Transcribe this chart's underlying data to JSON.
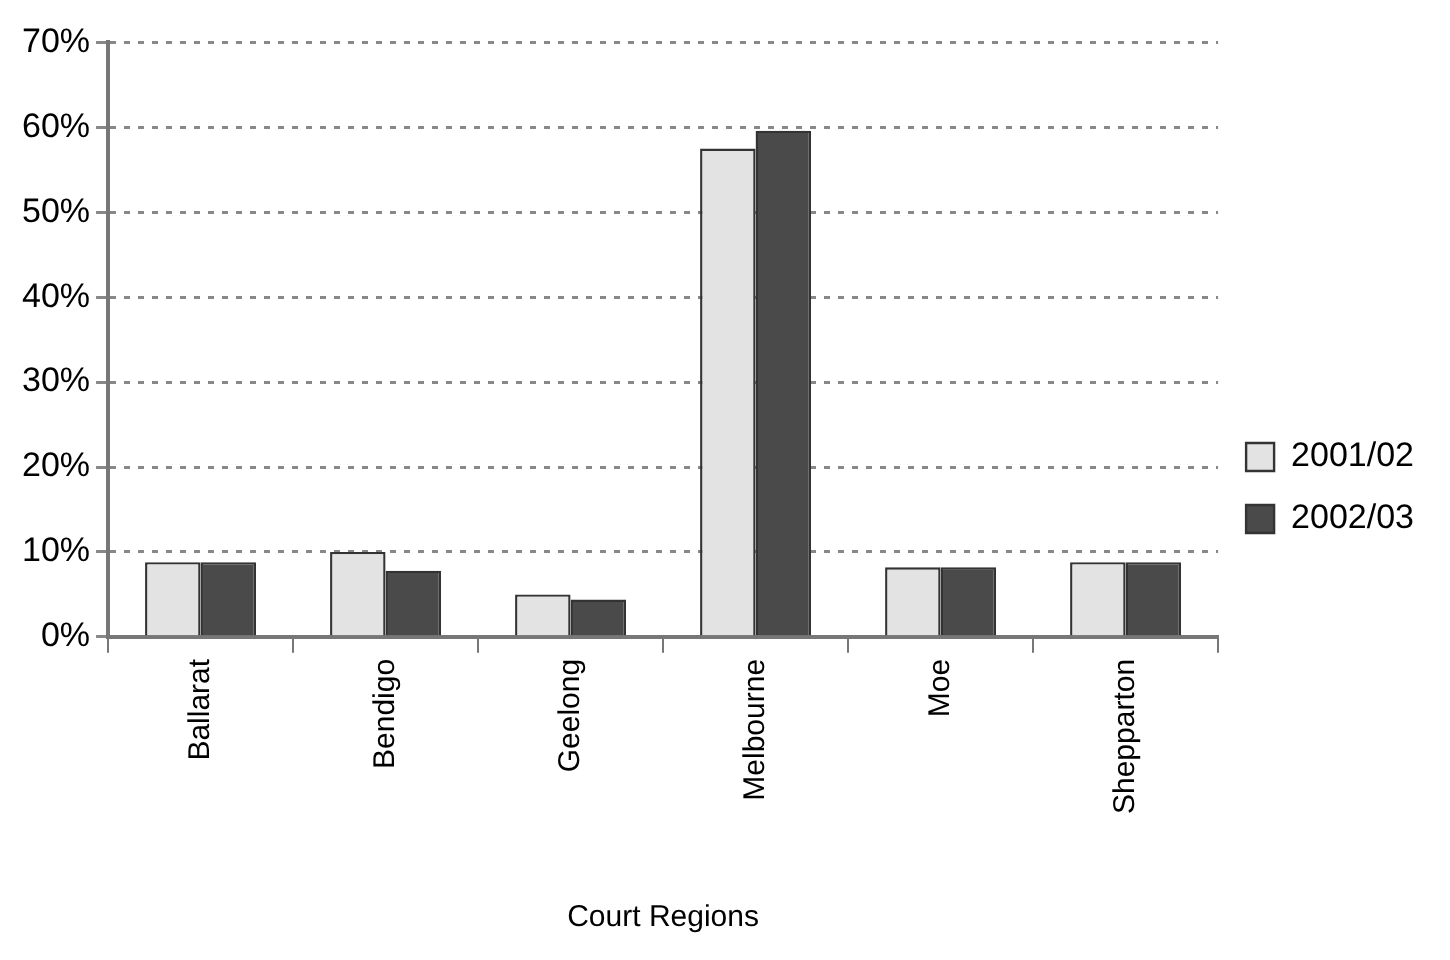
{
  "chart_data": {
    "type": "bar",
    "xlabel": "Court Regions",
    "categories": [
      "Ballarat",
      "Bendigo",
      "Geelong",
      "Melbourne",
      "Moe",
      "Shepparton"
    ],
    "series": [
      {
        "name": "2001/02",
        "color": "#e3e3e3",
        "values": [
          8.8,
          10,
          5,
          57.5,
          8.2,
          8.8
        ]
      },
      {
        "name": "2002/03",
        "color": "#4a4a4a",
        "values": [
          8.8,
          7.8,
          4.4,
          59.6,
          8.2,
          8.8
        ]
      }
    ],
    "ylim": [
      0,
      70
    ],
    "yticks": [
      {
        "value": 0,
        "label": "0%"
      },
      {
        "value": 10,
        "label": "10%"
      },
      {
        "value": 20,
        "label": "20%"
      },
      {
        "value": 30,
        "label": "30%"
      },
      {
        "value": 40,
        "label": "40%"
      },
      {
        "value": 50,
        "label": "50%"
      },
      {
        "value": 60,
        "label": "60%"
      },
      {
        "value": 70,
        "label": "70%"
      }
    ],
    "grid": "y",
    "legend": "right"
  }
}
